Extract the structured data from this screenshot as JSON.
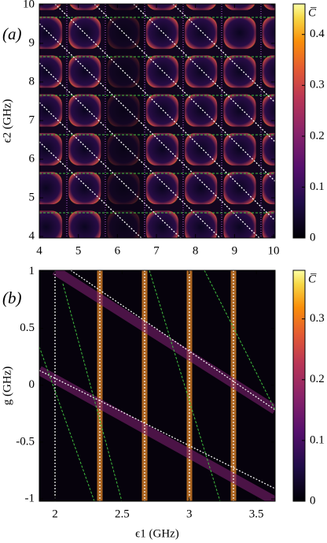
{
  "chart_data": [
    {
      "type": "heatmap",
      "title": "(a)",
      "y_label": "ϵ2 (GHz)",
      "colorbar_label": "C̅",
      "xlim": [
        4,
        10.04
      ],
      "xticks": [
        4,
        5,
        6,
        7,
        8,
        9,
        10
      ],
      "ylim": [
        3.96,
        10.02
      ],
      "yticks": [
        4,
        5,
        6,
        7,
        8,
        9,
        10
      ],
      "clim": [
        0,
        0.46
      ],
      "cticks": [
        0,
        0.1,
        0.2,
        0.3,
        0.4
      ],
      "colormap": "inferno"
    },
    {
      "type": "heatmap",
      "title": "(b)",
      "x_label": "ϵ1 (GHz)",
      "y_label": "g (GHz)",
      "colorbar_label": "C̅",
      "xlim": [
        1.883,
        3.64
      ],
      "xticks": [
        2,
        2.5,
        3,
        3.5
      ],
      "ylim": [
        -1.02,
        1.01
      ],
      "yticks": [
        -1,
        -0.5,
        0,
        0.5,
        1
      ],
      "clim": [
        0,
        0.38
      ],
      "cticks": [
        0,
        0.1,
        0.2,
        0.3
      ],
      "colormap": "inferno"
    }
  ]
}
